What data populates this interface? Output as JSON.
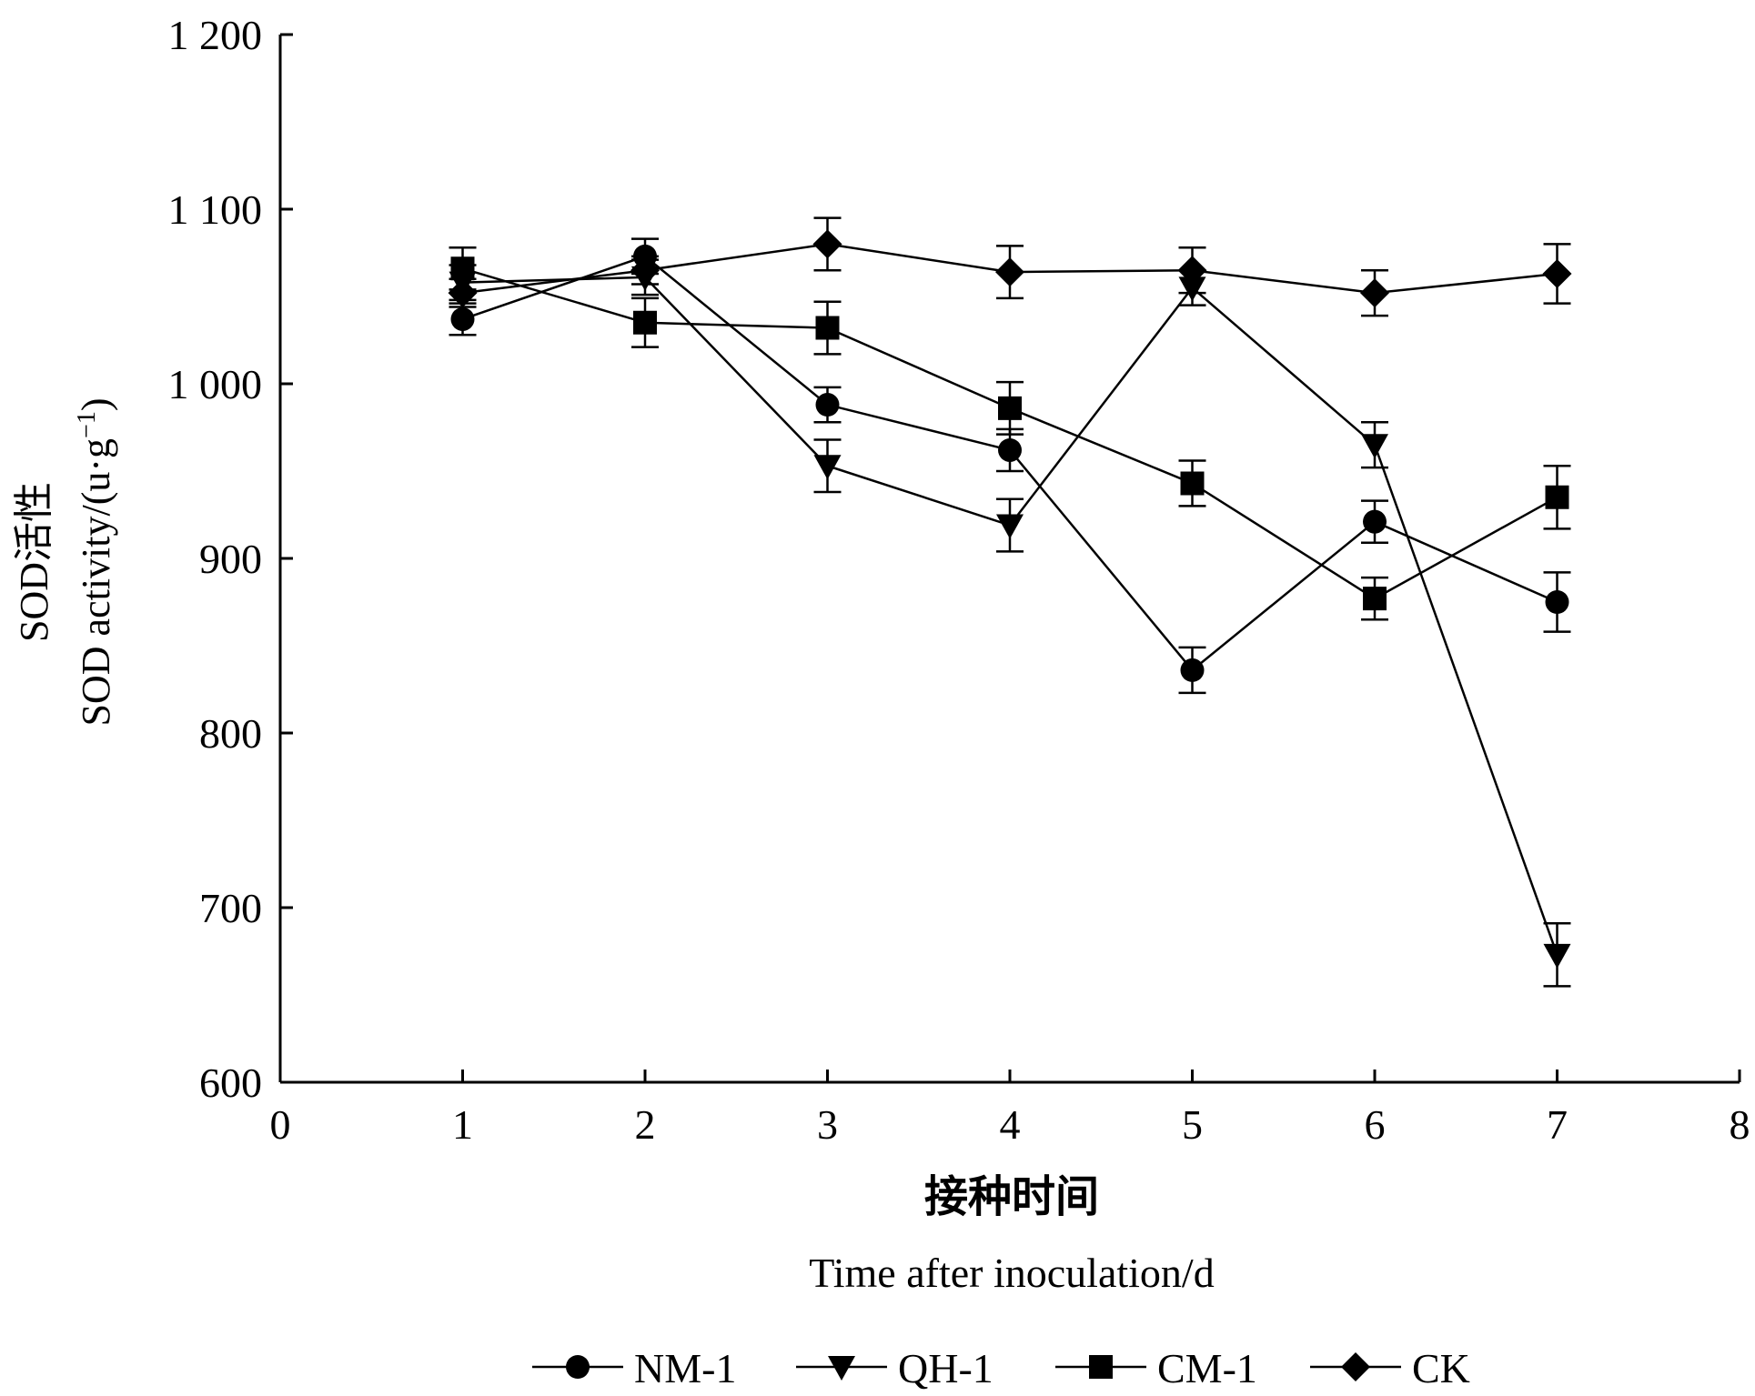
{
  "chart_data": {
    "type": "line",
    "ylabel_cn": "SOD活性",
    "ylabel_en": "SOD activity/(u·g",
    "ylabel_en_sup": "−1",
    "ylabel_en_end": ")",
    "xlabel_cn": "接种时间",
    "xlabel_en": "Time after inoculation/d",
    "xlim": [
      0,
      8
    ],
    "ylim": [
      600,
      1200
    ],
    "xticks": [
      0,
      1,
      2,
      3,
      4,
      5,
      6,
      7,
      8
    ],
    "xtick_labels": [
      "0",
      "1",
      "2",
      "3",
      "4",
      "5",
      "6",
      "7",
      "8"
    ],
    "yticks": [
      600,
      700,
      800,
      900,
      1000,
      1100,
      1200
    ],
    "ytick_labels": [
      "600",
      "700",
      "800",
      "900",
      "1 000",
      "1 100",
      "1 200"
    ],
    "legend_position": "bottom",
    "x": [
      1,
      2,
      3,
      4,
      5,
      6,
      7
    ],
    "series": [
      {
        "name": "NM-1",
        "marker": "circle",
        "values": [
          1037,
          1073,
          988,
          962,
          836,
          921,
          875
        ],
        "errors": [
          9,
          10,
          10,
          12,
          13,
          12,
          17
        ]
      },
      {
        "name": "QH-1",
        "marker": "triangle-down",
        "values": [
          1058,
          1061,
          953,
          919,
          1055,
          965,
          673
        ],
        "errors": [
          10,
          10,
          15,
          15,
          10,
          13,
          18
        ]
      },
      {
        "name": "CM-1",
        "marker": "square",
        "values": [
          1066,
          1035,
          1032,
          986,
          943,
          877,
          935
        ],
        "errors": [
          12,
          14,
          15,
          15,
          13,
          12,
          18
        ]
      },
      {
        "name": "CK",
        "marker": "diamond",
        "values": [
          1052,
          1065,
          1080,
          1064,
          1065,
          1052,
          1063
        ],
        "errors": [
          8,
          8,
          15,
          15,
          13,
          13,
          17
        ]
      }
    ]
  }
}
